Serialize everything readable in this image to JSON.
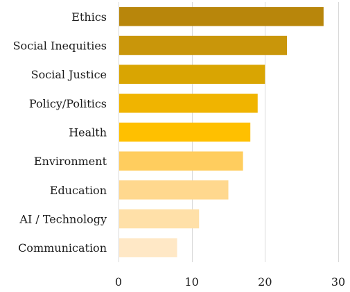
{
  "chart_data": {
    "type": "bar",
    "orientation": "horizontal",
    "categories": [
      "Ethics",
      "Social Inequities",
      "Social Justice",
      "Policy/Politics",
      "Health",
      "Environment",
      "Education",
      "AI / Technology",
      "Communication"
    ],
    "values": [
      28,
      23,
      20,
      19,
      18,
      17,
      15,
      11,
      8
    ],
    "colors": [
      "#B8860B",
      "#C9960A",
      "#D9A502",
      "#F0B400",
      "#FFC000",
      "#FFCD5E",
      "#FFD88E",
      "#FFE0A8",
      "#FFE8C6"
    ],
    "xlim": [
      0,
      30
    ],
    "xticks": [
      0,
      10,
      20,
      30
    ],
    "grid": true,
    "title": "",
    "xlabel": "",
    "ylabel": ""
  }
}
